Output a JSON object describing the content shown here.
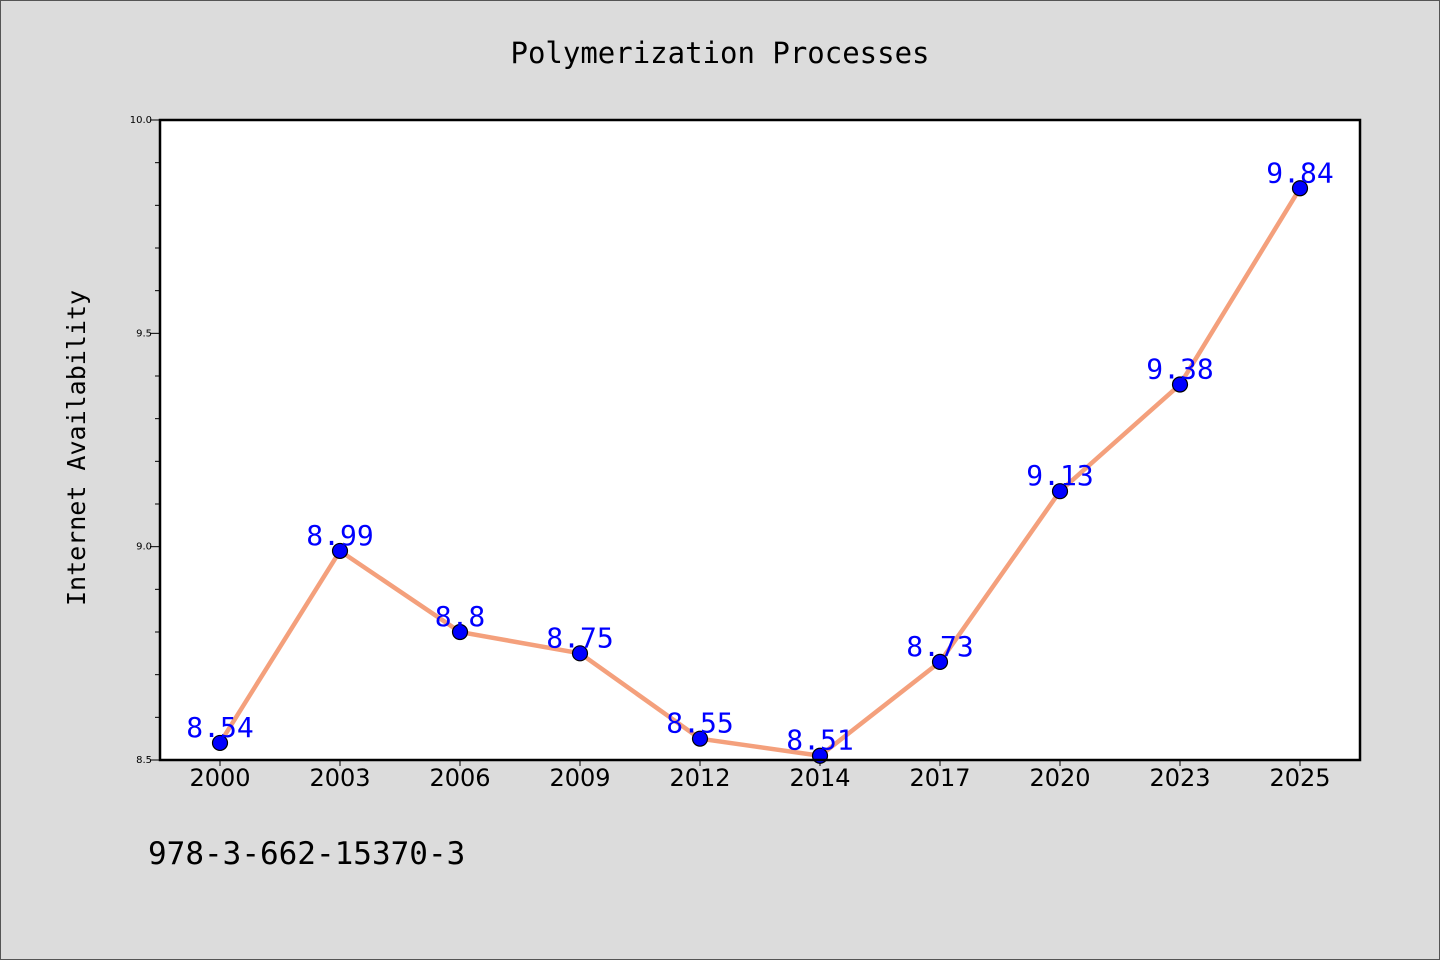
{
  "chart_data": {
    "type": "line",
    "title": "Polymerization Processes",
    "xlabel": "",
    "ylabel": "Internet Availability",
    "categories": [
      "2000",
      "2003",
      "2006",
      "2009",
      "2012",
      "2014",
      "2017",
      "2020",
      "2023",
      "2025"
    ],
    "series": [
      {
        "values": [
          8.54,
          8.99,
          8.8,
          8.75,
          8.55,
          8.51,
          8.73,
          9.13,
          9.38,
          9.84
        ],
        "labels": [
          "8.54",
          "8.99",
          "8.8",
          "8.75",
          "8.55",
          "8.51",
          "8.73",
          "9.13",
          "9.38",
          "9.84"
        ],
        "line_color": "#f4a07c",
        "marker_color": "#0000ff"
      }
    ],
    "ylim": [
      8.5,
      10.0
    ],
    "yticks": [
      "8.5",
      "9.0",
      "9.5",
      "10.0"
    ],
    "grid": false,
    "background": "#dcdcdc",
    "plot_background": "#ffffff"
  },
  "footer": {
    "text": "978-3-662-15370-3"
  }
}
